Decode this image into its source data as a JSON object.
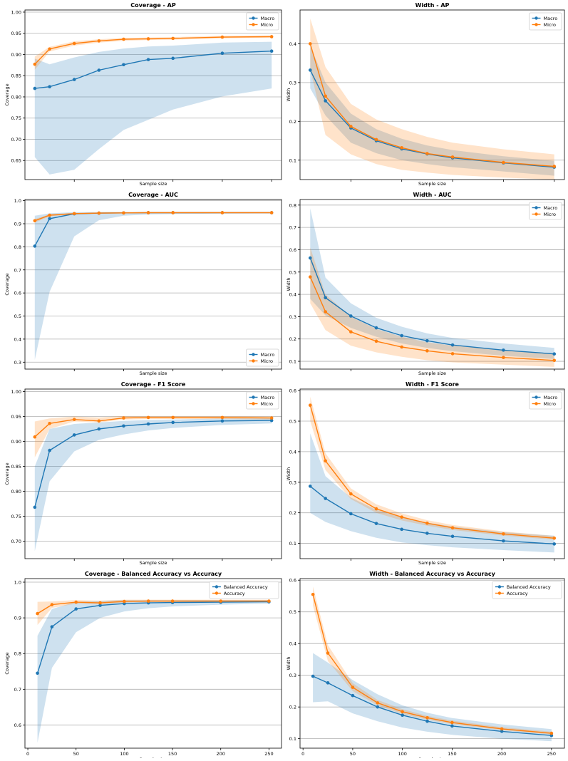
{
  "chart_data": [
    {
      "type": "line",
      "title": "Coverage - AP",
      "xlabel": "Sample size",
      "ylabel": "Coverage",
      "xlim": [
        0,
        260
      ],
      "ylim": [
        0.605,
        1.005
      ],
      "yticks": [
        0.65,
        0.7,
        0.75,
        0.8,
        0.85,
        0.9,
        0.95,
        1.0
      ],
      "ytick_labels": [
        "0.65",
        "0.70",
        "0.75",
        "0.80",
        "0.85",
        "0.90",
        "0.95",
        "1.00"
      ],
      "xticks": [
        50,
        100,
        150,
        200,
        250
      ],
      "xtick_labels": [],
      "legend_loc": "upper-right",
      "x": [
        10,
        25,
        50,
        75,
        100,
        125,
        150,
        200,
        250
      ],
      "series": [
        {
          "name": "Macro",
          "color": "#1f77b4",
          "values": [
            0.82,
            0.824,
            0.841,
            0.863,
            0.876,
            0.888,
            0.891,
            0.903,
            0.908
          ],
          "lower": [
            0.658,
            0.617,
            0.628,
            0.677,
            0.722,
            0.746,
            0.77,
            0.801,
            0.82
          ],
          "upper": [
            0.89,
            0.877,
            0.893,
            0.906,
            0.914,
            0.919,
            0.921,
            0.928,
            0.93
          ]
        },
        {
          "name": "Micro",
          "color": "#ff7f0e",
          "values": [
            0.877,
            0.913,
            0.926,
            0.932,
            0.936,
            0.937,
            0.938,
            0.941,
            0.942
          ],
          "lower": [
            0.864,
            0.907,
            0.921,
            0.928,
            0.932,
            0.934,
            0.935,
            0.938,
            0.94
          ],
          "upper": [
            0.895,
            0.918,
            0.931,
            0.936,
            0.939,
            0.94,
            0.941,
            0.944,
            0.945
          ]
        }
      ]
    },
    {
      "type": "line",
      "title": "Width - AP",
      "xlabel": "Sample size",
      "ylabel": "Width",
      "xlim": [
        0,
        260
      ],
      "ylim": [
        0.05,
        0.487
      ],
      "yticks": [
        0.1,
        0.2,
        0.3,
        0.4
      ],
      "ytick_labels": [
        "0.1",
        "0.2",
        "0.3",
        "0.4"
      ],
      "xticks": [
        50,
        100,
        150,
        200,
        250
      ],
      "xtick_labels": [],
      "legend_loc": "upper-right",
      "x": [
        10,
        25,
        50,
        75,
        100,
        125,
        150,
        200,
        250
      ],
      "series": [
        {
          "name": "Macro",
          "color": "#1f77b4",
          "values": [
            0.332,
            0.253,
            0.183,
            0.15,
            0.129,
            0.116,
            0.106,
            0.093,
            0.082
          ],
          "lower": [
            0.285,
            0.215,
            0.145,
            0.118,
            0.1,
            0.09,
            0.082,
            0.071,
            0.06
          ],
          "upper": [
            0.395,
            0.3,
            0.22,
            0.18,
            0.155,
            0.138,
            0.126,
            0.11,
            0.098
          ]
        },
        {
          "name": "Micro",
          "color": "#ff7f0e",
          "values": [
            0.4,
            0.265,
            0.187,
            0.153,
            0.132,
            0.117,
            0.108,
            0.094,
            0.084
          ],
          "lower": [
            0.335,
            0.165,
            0.115,
            0.09,
            0.075,
            0.068,
            0.062,
            0.055,
            0.05
          ],
          "upper": [
            0.465,
            0.34,
            0.245,
            0.205,
            0.18,
            0.16,
            0.145,
            0.128,
            0.115
          ]
        }
      ]
    },
    {
      "type": "line",
      "title": "Coverage - AUC",
      "xlabel": "Sample size",
      "ylabel": "Coverage",
      "xlim": [
        0,
        260
      ],
      "ylim": [
        0.27,
        1.005
      ],
      "yticks": [
        0.3,
        0.4,
        0.5,
        0.6,
        0.7,
        0.8,
        0.9,
        1.0
      ],
      "ytick_labels": [
        "0.3",
        "0.4",
        "0.5",
        "0.6",
        "0.7",
        "0.8",
        "0.9",
        "1.0"
      ],
      "xticks": [
        50,
        100,
        150,
        200,
        250
      ],
      "xtick_labels": [],
      "legend_loc": "lower-right",
      "x": [
        10,
        25,
        50,
        75,
        100,
        125,
        150,
        200,
        250
      ],
      "series": [
        {
          "name": "Macro",
          "color": "#1f77b4",
          "values": [
            0.803,
            0.922,
            0.943,
            0.946,
            0.947,
            0.948,
            0.948,
            0.948,
            0.948
          ],
          "lower": [
            0.31,
            0.605,
            0.845,
            0.915,
            0.935,
            0.94,
            0.942,
            0.944,
            0.945
          ],
          "upper": [
            0.935,
            0.945,
            0.95,
            0.951,
            0.951,
            0.951,
            0.951,
            0.951,
            0.951
          ]
        },
        {
          "name": "Micro",
          "color": "#ff7f0e",
          "values": [
            0.913,
            0.937,
            0.944,
            0.946,
            0.947,
            0.948,
            0.948,
            0.948,
            0.948
          ],
          "lower": [
            0.905,
            0.932,
            0.94,
            0.943,
            0.945,
            0.946,
            0.946,
            0.946,
            0.946
          ],
          "upper": [
            0.92,
            0.941,
            0.947,
            0.949,
            0.95,
            0.95,
            0.95,
            0.95,
            0.95
          ]
        }
      ]
    },
    {
      "type": "line",
      "title": "Width - AUC",
      "xlabel": "Sample size",
      "ylabel": "Width",
      "xlim": [
        0,
        260
      ],
      "ylim": [
        0.065,
        0.825
      ],
      "yticks": [
        0.1,
        0.2,
        0.3,
        0.4,
        0.5,
        0.6,
        0.7,
        0.8
      ],
      "ytick_labels": [
        "0.1",
        "0.2",
        "0.3",
        "0.4",
        "0.5",
        "0.6",
        "0.7",
        "0.8"
      ],
      "xticks": [
        50,
        100,
        150,
        200,
        250
      ],
      "xtick_labels": [],
      "legend_loc": "upper-right",
      "x": [
        10,
        25,
        50,
        75,
        100,
        125,
        150,
        200,
        250
      ],
      "series": [
        {
          "name": "Macro",
          "color": "#1f77b4",
          "values": [
            0.563,
            0.385,
            0.303,
            0.25,
            0.215,
            0.192,
            0.173,
            0.15,
            0.133
          ],
          "lower": [
            0.38,
            0.305,
            0.25,
            0.21,
            0.18,
            0.16,
            0.145,
            0.125,
            0.11
          ],
          "upper": [
            0.785,
            0.475,
            0.36,
            0.295,
            0.255,
            0.225,
            0.205,
            0.18,
            0.16
          ]
        },
        {
          "name": "Micro",
          "color": "#ff7f0e",
          "values": [
            0.478,
            0.322,
            0.232,
            0.19,
            0.164,
            0.147,
            0.134,
            0.117,
            0.104
          ],
          "lower": [
            0.36,
            0.24,
            0.17,
            0.14,
            0.12,
            0.105,
            0.095,
            0.085,
            0.075
          ],
          "upper": [
            0.61,
            0.4,
            0.3,
            0.245,
            0.21,
            0.185,
            0.17,
            0.15,
            0.135
          ]
        }
      ]
    },
    {
      "type": "line",
      "title": "Coverage - F1 Score",
      "xlabel": "Sample size",
      "ylabel": "Coverage",
      "xlim": [
        0,
        260
      ],
      "ylim": [
        0.665,
        1.005
      ],
      "yticks": [
        0.7,
        0.75,
        0.8,
        0.85,
        0.9,
        0.95,
        1.0
      ],
      "ytick_labels": [
        "0.70",
        "0.75",
        "0.80",
        "0.85",
        "0.90",
        "0.95",
        "1.00"
      ],
      "xticks": [
        50,
        100,
        150,
        200,
        250
      ],
      "xtick_labels": [],
      "legend_loc": "upper-right",
      "x": [
        10,
        25,
        50,
        75,
        100,
        125,
        150,
        200,
        250
      ],
      "series": [
        {
          "name": "Macro",
          "color": "#1f77b4",
          "values": [
            0.768,
            0.882,
            0.913,
            0.925,
            0.931,
            0.935,
            0.938,
            0.941,
            0.942
          ],
          "lower": [
            0.68,
            0.82,
            0.88,
            0.903,
            0.914,
            0.922,
            0.927,
            0.933,
            0.936
          ],
          "upper": [
            0.85,
            0.925,
            0.935,
            0.938,
            0.941,
            0.943,
            0.944,
            0.946,
            0.947
          ]
        },
        {
          "name": "Micro",
          "color": "#ff7f0e",
          "values": [
            0.909,
            0.936,
            0.944,
            0.941,
            0.947,
            0.948,
            0.948,
            0.948,
            0.947
          ],
          "lower": [
            0.868,
            0.925,
            0.94,
            0.938,
            0.944,
            0.945,
            0.945,
            0.945,
            0.944
          ],
          "upper": [
            0.94,
            0.946,
            0.95,
            0.948,
            0.951,
            0.951,
            0.951,
            0.951,
            0.95
          ]
        }
      ]
    },
    {
      "type": "line",
      "title": "Width - F1 Score",
      "xlabel": "Sample size",
      "ylabel": "Width",
      "xlim": [
        0,
        260
      ],
      "ylim": [
        0.05,
        0.605
      ],
      "yticks": [
        0.1,
        0.2,
        0.3,
        0.4,
        0.5,
        0.6
      ],
      "ytick_labels": [
        "0.1",
        "0.2",
        "0.3",
        "0.4",
        "0.5",
        "0.6"
      ],
      "xticks": [
        50,
        100,
        150,
        200,
        250
      ],
      "xtick_labels": [],
      "legend_loc": "upper-right",
      "x": [
        10,
        25,
        50,
        75,
        100,
        125,
        150,
        200,
        250
      ],
      "series": [
        {
          "name": "Macro",
          "color": "#1f77b4",
          "values": [
            0.287,
            0.247,
            0.197,
            0.165,
            0.146,
            0.133,
            0.123,
            0.108,
            0.098
          ],
          "lower": [
            0.2,
            0.17,
            0.14,
            0.118,
            0.103,
            0.094,
            0.087,
            0.078,
            0.07
          ],
          "upper": [
            0.46,
            0.32,
            0.25,
            0.21,
            0.185,
            0.168,
            0.155,
            0.137,
            0.125
          ]
        },
        {
          "name": "Micro",
          "color": "#ff7f0e",
          "values": [
            0.552,
            0.37,
            0.262,
            0.213,
            0.186,
            0.166,
            0.151,
            0.131,
            0.117
          ],
          "lower": [
            0.5,
            0.34,
            0.245,
            0.2,
            0.175,
            0.158,
            0.144,
            0.125,
            0.112
          ],
          "upper": [
            0.58,
            0.395,
            0.28,
            0.228,
            0.198,
            0.176,
            0.16,
            0.139,
            0.124
          ]
        }
      ]
    },
    {
      "type": "line",
      "title": "Coverage - Balanced Accuracy vs Accuracy",
      "xlabel": "Sample size",
      "ylabel": "Coverage",
      "xlim": [
        -3,
        263
      ],
      "ylim": [
        0.535,
        1.01
      ],
      "yticks": [
        0.6,
        0.7,
        0.8,
        0.9,
        1.0
      ],
      "ytick_labels": [
        "0.6",
        "0.7",
        "0.8",
        "0.9",
        "1.0"
      ],
      "xticks": [
        0,
        50,
        100,
        150,
        200,
        250
      ],
      "xtick_labels": [
        "0",
        "50",
        "100",
        "150",
        "200",
        "250"
      ],
      "legend_loc": "upper-right",
      "x": [
        10,
        25,
        50,
        75,
        100,
        125,
        150,
        200,
        250
      ],
      "series": [
        {
          "name": "Balanced Accuracy",
          "color": "#1f77b4",
          "values": [
            0.745,
            0.875,
            0.925,
            0.935,
            0.94,
            0.942,
            0.943,
            0.944,
            0.945
          ],
          "lower": [
            0.55,
            0.76,
            0.86,
            0.9,
            0.918,
            0.927,
            0.932,
            0.937,
            0.94
          ],
          "upper": [
            0.85,
            0.925,
            0.945,
            0.948,
            0.95,
            0.95,
            0.95,
            0.95,
            0.95
          ]
        },
        {
          "name": "Accuracy",
          "color": "#ff7f0e",
          "values": [
            0.912,
            0.937,
            0.944,
            0.942,
            0.946,
            0.947,
            0.947,
            0.947,
            0.947
          ],
          "lower": [
            0.88,
            0.928,
            0.94,
            0.938,
            0.943,
            0.944,
            0.944,
            0.944,
            0.944
          ],
          "upper": [
            0.945,
            0.946,
            0.95,
            0.948,
            0.951,
            0.951,
            0.951,
            0.951,
            0.951
          ]
        }
      ]
    },
    {
      "type": "line",
      "title": "Width - Balanced Accuracy vs Accuracy",
      "xlabel": "Sample size",
      "ylabel": "Width",
      "xlim": [
        -3,
        263
      ],
      "ylim": [
        0.07,
        0.605
      ],
      "yticks": [
        0.1,
        0.2,
        0.3,
        0.4,
        0.5,
        0.6
      ],
      "ytick_labels": [
        "0.1",
        "0.2",
        "0.3",
        "0.4",
        "0.5",
        "0.6"
      ],
      "xticks": [
        0,
        50,
        100,
        150,
        200,
        250
      ],
      "xtick_labels": [
        "0",
        "50",
        "100",
        "150",
        "200",
        "250"
      ],
      "legend_loc": "upper-right",
      "x": [
        10,
        25,
        50,
        75,
        100,
        125,
        150,
        200,
        250
      ],
      "series": [
        {
          "name": "Balanced Accuracy",
          "color": "#1f77b4",
          "values": [
            0.297,
            0.276,
            0.236,
            0.2,
            0.174,
            0.155,
            0.14,
            0.123,
            0.11
          ],
          "lower": [
            0.215,
            0.218,
            0.18,
            0.155,
            0.135,
            0.122,
            0.112,
            0.1,
            0.092
          ],
          "upper": [
            0.37,
            0.34,
            0.285,
            0.24,
            0.205,
            0.182,
            0.165,
            0.145,
            0.13
          ]
        },
        {
          "name": "Accuracy",
          "color": "#ff7f0e",
          "values": [
            0.555,
            0.37,
            0.262,
            0.213,
            0.185,
            0.166,
            0.151,
            0.131,
            0.117
          ],
          "lower": [
            0.52,
            0.345,
            0.25,
            0.205,
            0.178,
            0.16,
            0.146,
            0.127,
            0.113
          ],
          "upper": [
            0.58,
            0.395,
            0.275,
            0.222,
            0.193,
            0.172,
            0.157,
            0.136,
            0.122
          ]
        }
      ]
    }
  ]
}
